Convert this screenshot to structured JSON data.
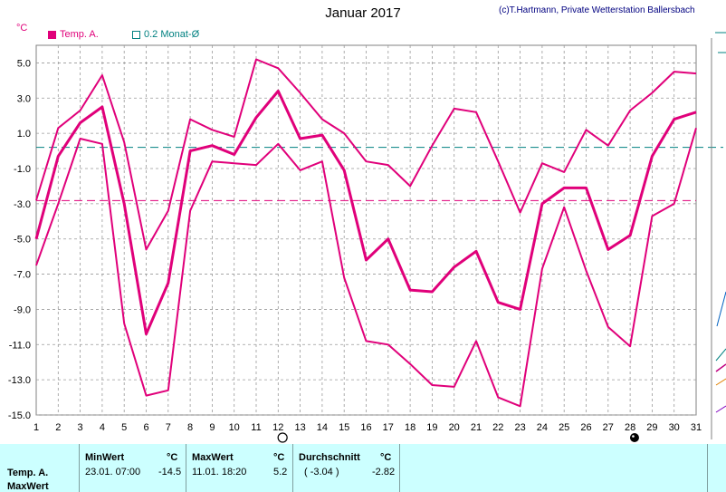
{
  "title": "Januar 2017",
  "credit": "(c)T.Hartmann, Private Wetterstation Ballersbach",
  "unit": "°C",
  "legend": [
    {
      "label": "Temp. A.",
      "color": "#e0007a",
      "marker": "filled"
    },
    {
      "label": "0.2 Monat-Ø",
      "color": "#008080",
      "marker": "outline"
    }
  ],
  "chart_data": {
    "type": "line",
    "x": [
      1,
      2,
      3,
      4,
      5,
      6,
      7,
      8,
      9,
      10,
      11,
      12,
      13,
      14,
      15,
      16,
      17,
      18,
      19,
      20,
      21,
      22,
      23,
      24,
      25,
      26,
      27,
      28,
      29,
      30,
      31
    ],
    "xticks": [
      "1",
      "2",
      "3",
      "4",
      "5",
      "6",
      "7",
      "8",
      "9",
      "10",
      "11",
      "12",
      "13",
      "14",
      "15",
      "16",
      "17",
      "18",
      "19",
      "20",
      "21",
      "22",
      "23",
      "24",
      "25",
      "26",
      "27",
      "28",
      "29",
      "30",
      "31"
    ],
    "yticks": [
      "5.0",
      "3.0",
      "1.0",
      "-1.0",
      "-3.0",
      "-5.0",
      "-7.0",
      "-9.0",
      "-11.0",
      "-13.0",
      "-15.0"
    ],
    "ylim": [
      -15,
      6
    ],
    "grid": true,
    "series": [
      {
        "role": "max",
        "color": "#e0007a",
        "width": 2,
        "values": [
          -2.8,
          1.3,
          2.3,
          4.3,
          0.5,
          -5.6,
          -3.4,
          1.8,
          1.2,
          0.8,
          5.2,
          4.7,
          3.3,
          1.8,
          1.0,
          -0.6,
          -0.8,
          -2.0,
          0.3,
          2.4,
          2.2,
          -0.6,
          -3.5,
          -0.7,
          -1.2,
          1.2,
          0.3,
          2.3,
          3.3,
          4.5,
          4.4
        ]
      },
      {
        "role": "mean",
        "color": "#e0007a",
        "width": 3,
        "values": [
          -5.0,
          -0.3,
          1.6,
          2.5,
          -3.0,
          -10.4,
          -7.5,
          0.0,
          0.3,
          -0.2,
          1.9,
          3.4,
          0.7,
          0.9,
          -1.1,
          -6.2,
          -5.0,
          -7.9,
          -8.0,
          -6.6,
          -5.7,
          -8.6,
          -9.0,
          -3.0,
          -2.1,
          -2.1,
          -5.6,
          -4.8,
          -0.3,
          1.8,
          2.2
        ]
      },
      {
        "role": "min",
        "color": "#e0007a",
        "width": 2,
        "values": [
          -6.5,
          -3.0,
          0.7,
          0.4,
          -9.8,
          -13.9,
          -13.6,
          -3.4,
          -0.6,
          -0.7,
          -0.8,
          0.4,
          -1.1,
          -0.6,
          -7.2,
          -10.8,
          -11.0,
          -12.1,
          -13.3,
          -13.4,
          -10.8,
          -14.0,
          -14.5,
          -6.7,
          -3.2,
          -6.8,
          -10.0,
          -11.1,
          -3.7,
          -3.0,
          1.3
        ]
      }
    ],
    "hlines": [
      {
        "value": 0.2,
        "color": "#008080",
        "style": "dashed"
      },
      {
        "value": -2.82,
        "color": "#e0007a",
        "style": "dashed"
      }
    ],
    "moon_markers": [
      {
        "x": 12,
        "type": "full"
      },
      {
        "x": 28,
        "type": "new"
      }
    ]
  },
  "table": {
    "row_label": "Temp. A.",
    "row_label2": "MaxWert",
    "min": {
      "header": "MinWert",
      "unit": "°C",
      "time": "23.01.  07:00",
      "value": "-14.5"
    },
    "max": {
      "header": "MaxWert",
      "unit": "°C",
      "time": "11.01.  18:20",
      "value": "5.2"
    },
    "avg": {
      "header": "Durchschnitt",
      "unit": "°C",
      "sub": "( -3.04 )",
      "value": "-2.82"
    }
  }
}
